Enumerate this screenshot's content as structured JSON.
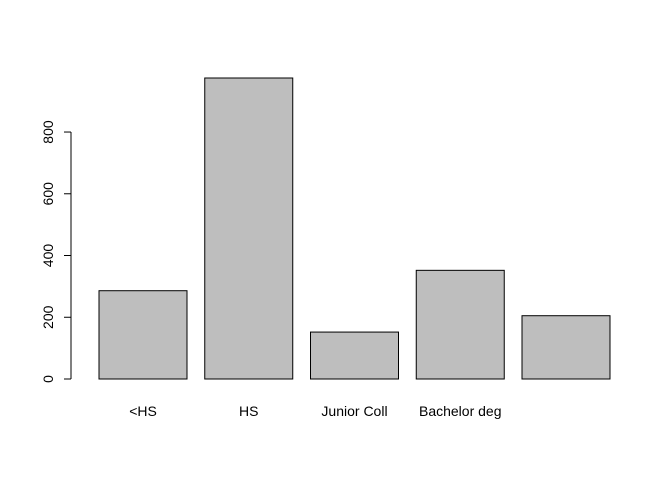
{
  "chart_data": {
    "type": "bar",
    "title": "",
    "xlabel": "",
    "ylabel": "",
    "categories": [
      "<HS",
      "HS",
      "Junior Coll",
      "Bachelor deg",
      ""
    ],
    "values": [
      286,
      975,
      152,
      352,
      205
    ],
    "ylim": [
      0,
      975
    ],
    "y_ticks": [
      0,
      200,
      400,
      600,
      800
    ],
    "grid": false,
    "legend": "none",
    "colors": {
      "bar_fill": "#bebebe",
      "bar_stroke": "#000000",
      "axis": "#000000",
      "text": "#000000"
    }
  }
}
